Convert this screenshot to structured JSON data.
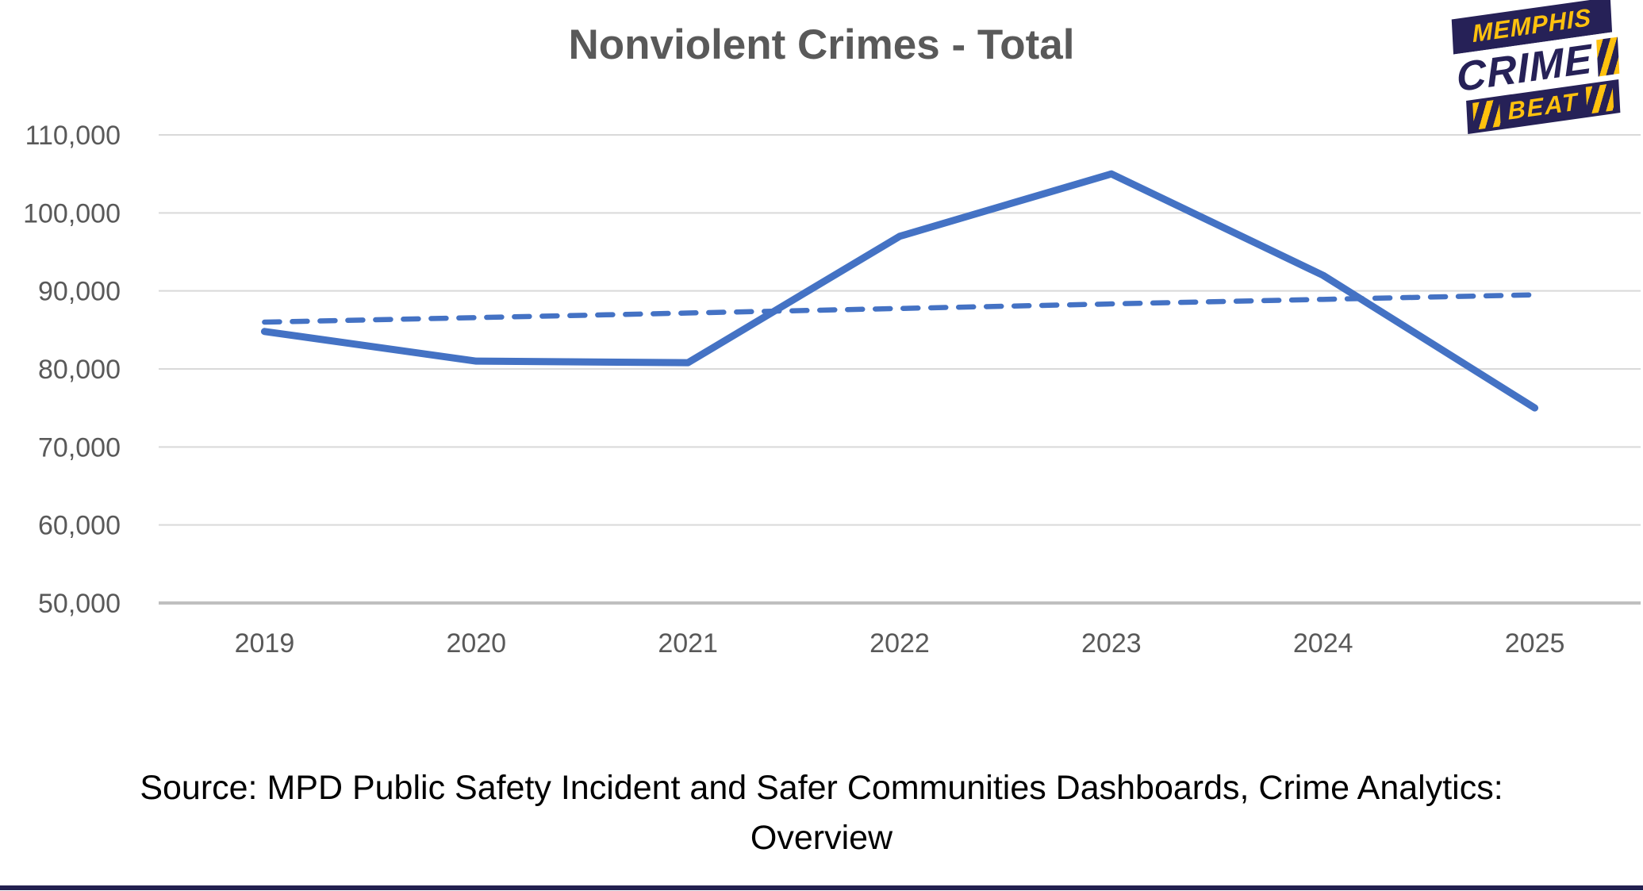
{
  "page": {
    "title": "Nonviolent Crimes - Total",
    "source_line1": "Source: MPD Public Safety Incident and Safer Communities Dashboards, Crime Analytics:",
    "source_line2": "Overview"
  },
  "logo": {
    "line1": "MEMPHIS",
    "line2": "CRIME",
    "line3": "BEAT",
    "navy": "#262157",
    "yellow": "#FFC10E"
  },
  "chart_data": {
    "type": "line",
    "title": "Nonviolent Crimes - Total",
    "categories": [
      "2019",
      "2020",
      "2021",
      "2022",
      "2023",
      "2024",
      "2025"
    ],
    "series": [
      {
        "name": "nonviolent-crimes-total",
        "style": "solid",
        "color": "#4472C4",
        "values": [
          84800,
          81000,
          80800,
          97000,
          105000,
          92000,
          75000
        ]
      },
      {
        "name": "linear-trend",
        "style": "dashed",
        "color": "#4472C4",
        "values": [
          86000,
          86583,
          87167,
          87750,
          88333,
          88917,
          89500
        ]
      }
    ],
    "ylim": [
      50000,
      110000
    ],
    "ytick_step": 10000,
    "ytick_labels": [
      "50,000",
      "60,000",
      "70,000",
      "80,000",
      "90,000",
      "100,000",
      "110,000"
    ],
    "grid": true,
    "legend": "none",
    "gridline_color": "#D9D9D9",
    "axis_line_color": "#BFBFBF",
    "axis_label_color": "#595959"
  }
}
